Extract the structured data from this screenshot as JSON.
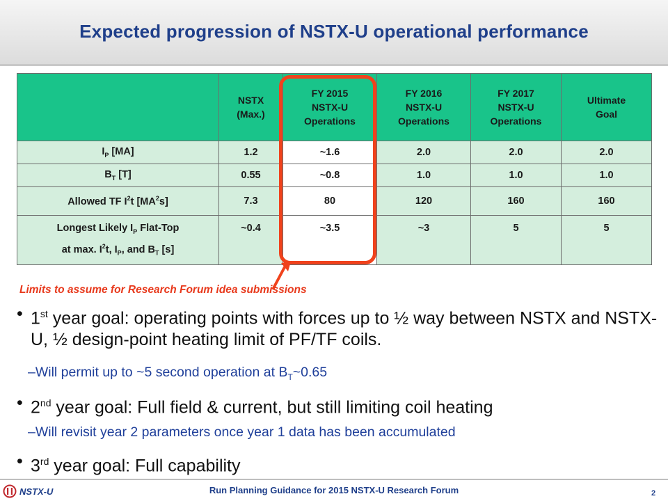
{
  "slide": {
    "title": "Expected progression of NSTX-U operational performance",
    "highlight_note": "Limits to assume for Research Forum idea submissions"
  },
  "table": {
    "headers": [
      "",
      "NSTX\n(Max.)",
      "FY 2015\nNSTX-U\nOperations",
      "FY 2016\nNSTX-U\nOperations",
      "FY 2017\nNSTX-U\nOperations",
      "Ultimate\nGoal"
    ],
    "rows": [
      {
        "label": "I_P [MA]",
        "values": [
          "1.2",
          "~1.6",
          "2.0",
          "2.0",
          "2.0"
        ]
      },
      {
        "label": "B_T [T]",
        "values": [
          "0.55",
          "~0.8",
          "1.0",
          "1.0",
          "1.0"
        ]
      },
      {
        "label": "Allowed TF I^2t [MA^2s]",
        "values": [
          "7.3",
          "80",
          "120",
          "160",
          "160"
        ]
      },
      {
        "label": "Longest Likely I_P Flat-Top at max. I^2t, I_P, and B_T [s]",
        "values": [
          "~0.4",
          "~3.5",
          "~3",
          "5",
          "5"
        ]
      }
    ]
  },
  "bullets": {
    "b1": {
      "sup": "st",
      "pre": "1",
      "text": " year goal: operating points with forces up to ½ way between NSTX and NSTX-U, ½ design-point heating limit of PF/TF coils."
    },
    "b1_sub": {
      "pre": "Will permit up to ~5 second operation at B",
      "sub": "T",
      "post": "~0.65"
    },
    "b2": {
      "sup": "nd",
      "pre": "2",
      "text": " year goal: Full field & current, but still limiting coil heating"
    },
    "b2_sub": {
      "text": "Will revisit year 2 parameters once year 1 data has been accumulated"
    },
    "b3": {
      "sup": "rd",
      "pre": "3",
      "text": " year goal: Full capability"
    }
  },
  "footer": {
    "logo_text": "NSTX-U",
    "center_text": "Run Planning Guidance for 2015 NSTX-U Research Forum",
    "page_number": "2"
  },
  "colors": {
    "title": "#1f3f8a",
    "table_header": "#19c48a",
    "table_row": "#d4eedd",
    "highlight": "#f0421c",
    "sub_bullet": "#1f3f9a"
  }
}
